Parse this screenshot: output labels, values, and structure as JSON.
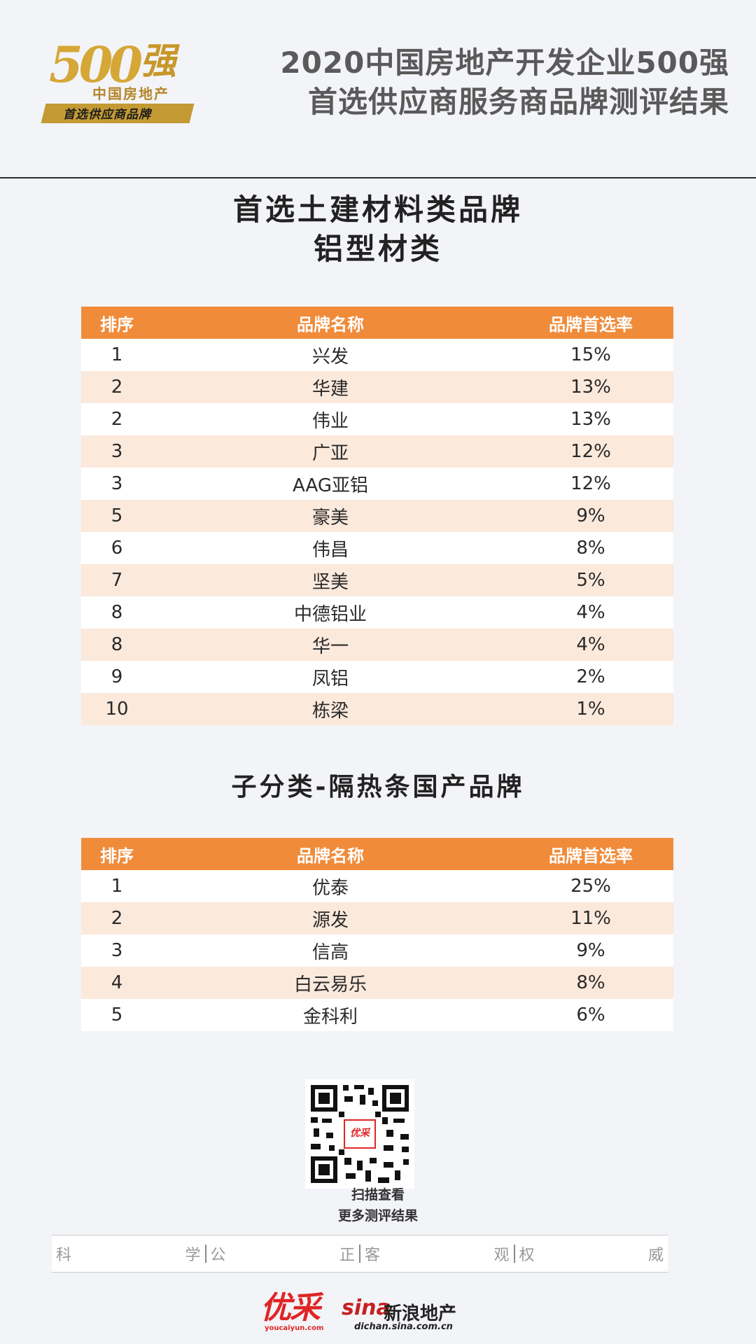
{
  "header": {
    "logo": {
      "number": "500",
      "strong": "强",
      "subtitle": "中国房地产",
      "ribbon": "首选供应商品牌"
    },
    "title_line1": "2020中国房地产开发企业500强",
    "title_line2": "首选供应商服务商品牌测评结果"
  },
  "section1": {
    "title": "首选土建材料类品牌",
    "subtitle": "铝型材类",
    "columns": [
      "排序",
      "品牌名称",
      "品牌首选率"
    ],
    "rows": [
      {
        "rank": "1",
        "brand": "兴发",
        "rate": "15%"
      },
      {
        "rank": "2",
        "brand": "华建",
        "rate": "13%"
      },
      {
        "rank": "2",
        "brand": "伟业",
        "rate": "13%"
      },
      {
        "rank": "3",
        "brand": "广亚",
        "rate": "12%"
      },
      {
        "rank": "3",
        "brand": "AAG亚铝",
        "rate": "12%"
      },
      {
        "rank": "5",
        "brand": "豪美",
        "rate": "9%"
      },
      {
        "rank": "6",
        "brand": "伟昌",
        "rate": "8%"
      },
      {
        "rank": "7",
        "brand": "坚美",
        "rate": "5%"
      },
      {
        "rank": "8",
        "brand": "中德铝业",
        "rate": "4%"
      },
      {
        "rank": "8",
        "brand": "华一",
        "rate": "4%"
      },
      {
        "rank": "9",
        "brand": "凤铝",
        "rate": "2%"
      },
      {
        "rank": "10",
        "brand": "栋梁",
        "rate": "1%"
      }
    ]
  },
  "section2": {
    "title": "子分类-隔热条国产品牌",
    "columns": [
      "排序",
      "品牌名称",
      "品牌首选率"
    ],
    "rows": [
      {
        "rank": "1",
        "brand": "优泰",
        "rate": "25%"
      },
      {
        "rank": "2",
        "brand": "源发",
        "rate": "11%"
      },
      {
        "rank": "3",
        "brand": "信高",
        "rate": "9%"
      },
      {
        "rank": "4",
        "brand": "白云易乐",
        "rate": "8%"
      },
      {
        "rank": "5",
        "brand": "金科利",
        "rate": "6%"
      }
    ]
  },
  "qr": {
    "center_label": "优采",
    "caption_line1": "扫描查看",
    "caption_line2": "更多测评结果"
  },
  "motto": {
    "groups": [
      [
        "科",
        "学"
      ],
      [
        "公",
        "正"
      ],
      [
        "客",
        "观"
      ],
      [
        "权",
        "威"
      ]
    ]
  },
  "footer": {
    "logo1": "优采",
    "logo1_url": "youcaiyun.com",
    "logo2_mark": "sina",
    "logo2_name": "新浪地产",
    "logo2_url": "dichan.sina.com.cn"
  },
  "colors": {
    "table_header": "#f08b3a",
    "row_alt": "#fbe9dc",
    "gold": "#c39a33"
  }
}
